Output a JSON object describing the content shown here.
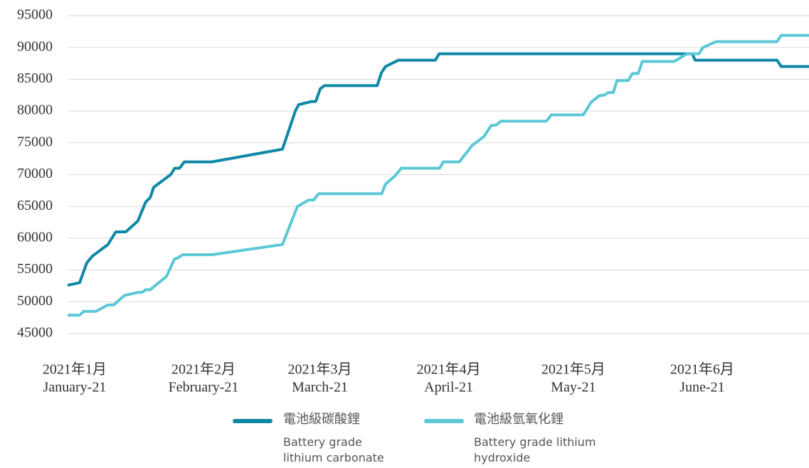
{
  "chart_data": {
    "type": "line",
    "xlim": [
      -0.7,
      177.7
    ],
    "xticks": [
      {
        "value": 1,
        "label": "2021年1月"
      },
      {
        "value": 32,
        "label": "2021年2月"
      },
      {
        "value": 60,
        "label": "2021年3月"
      },
      {
        "value": 91,
        "label": "2021年4月"
      },
      {
        "value": 121,
        "label": "2021年5月"
      },
      {
        "value": 152,
        "label": "2021年6月"
      }
    ],
    "xtick_sublabels": [
      "January-21",
      "February-21",
      "March-21",
      "April-21",
      "May-21",
      "June-21"
    ],
    "ylim": [
      45000,
      95000
    ],
    "yticks": [
      45000,
      50000,
      55000,
      60000,
      65000,
      70000,
      75000,
      80000,
      85000,
      90000,
      95000
    ],
    "grid": true,
    "series": [
      {
        "name": "電池級碳酸鋰",
        "name_en": "Battery grade lithium carbonate",
        "color": "#0e88a6",
        "x": [
          -0.7,
          2.2,
          3.9,
          5.3,
          9.0,
          10.9,
          13.3,
          16.2,
          18.1,
          19.2,
          20.0,
          24.1,
          25.1,
          26.2,
          27.4,
          34.0,
          51.0,
          54.1,
          54.9,
          58.0,
          59.0,
          60.1,
          61.1,
          73.8,
          74.8,
          75.8,
          78.9,
          87.8,
          88.7,
          149.6,
          150.3,
          170.0,
          171.0,
          177.7
        ],
        "values": [
          52600,
          53000,
          56100,
          57200,
          59000,
          61000,
          61000,
          62700,
          65700,
          66400,
          68000,
          70000,
          71000,
          71000,
          72000,
          72000,
          74000,
          80000,
          81000,
          81500,
          81500,
          83500,
          84000,
          84000,
          86000,
          87000,
          88000,
          88000,
          89000,
          89000,
          88000,
          88000,
          87000,
          87000
        ]
      },
      {
        "name": "電池級氫氧化鋰",
        "name_en": "Battery grade lithium hydroxide",
        "color": "#5bc8d6",
        "x": [
          -0.7,
          2.2,
          3.2,
          6.1,
          9.0,
          10.4,
          13.0,
          16.4,
          17.3,
          18.1,
          19.2,
          23.1,
          25.0,
          25.8,
          27.0,
          34.0,
          51.0,
          54.6,
          57.3,
          58.5,
          59.7,
          74.9,
          75.8,
          78.1,
          79.6,
          88.8,
          89.7,
          93.6,
          94.7,
          95.4,
          96.5,
          99.5,
          101.2,
          102.4,
          103.6,
          114.5,
          115.7,
          123.4,
          125.3,
          127.2,
          128.4,
          129.4,
          130.6,
          131.5,
          134.2,
          135.2,
          136.6,
          137.6,
          145.3,
          148.3,
          151.2,
          152.2,
          155.3,
          170.0,
          171.0,
          177.7
        ],
        "values": [
          47900,
          47900,
          48500,
          48500,
          49500,
          49500,
          51000,
          51500,
          51500,
          51900,
          51900,
          54000,
          56700,
          56900,
          57400,
          57400,
          59000,
          65000,
          66000,
          66000,
          67000,
          67000,
          68500,
          69800,
          71000,
          71000,
          72000,
          72000,
          73000,
          73500,
          74500,
          76000,
          77700,
          77800,
          78400,
          78400,
          79400,
          79400,
          81400,
          82400,
          82500,
          82900,
          82900,
          84800,
          84800,
          85900,
          85900,
          87800,
          87800,
          89000,
          89000,
          90000,
          90900,
          90900,
          91900,
          91900
        ]
      }
    ]
  }
}
